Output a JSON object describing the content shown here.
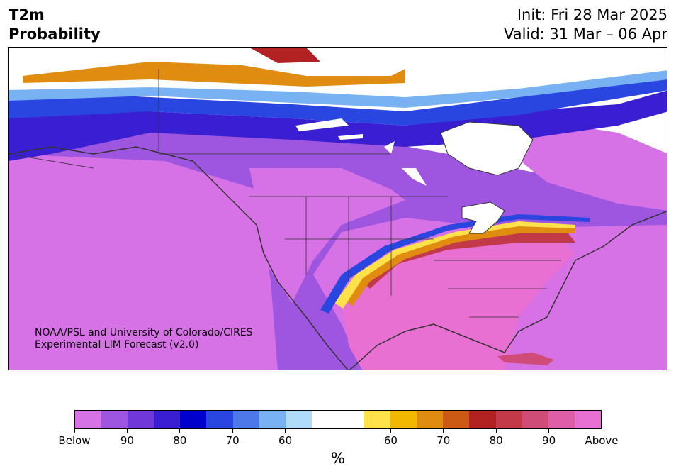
{
  "header": {
    "title_line1": "T2m",
    "title_line2": "Probability",
    "init": "Init: Fri 28 Mar 2025",
    "valid": "Valid: 31 Mar – 06 Apr"
  },
  "credit": {
    "line1": "NOAA/PSL and University of Colorado/CIRES",
    "line2": "Experimental LIM Forecast (v2.0)"
  },
  "colorbar": {
    "unit": "%",
    "colors": [
      "#d672e6",
      "#9e56e0",
      "#7038d8",
      "#3a1fd2",
      "#0000cc",
      "#2a46e0",
      "#4d78ea",
      "#78b2f2",
      "#b0dcfa",
      "#ffffff",
      "#ffffff",
      "#ffe24a",
      "#f2b800",
      "#e08c10",
      "#cc5a14",
      "#b22222",
      "#c23a4a",
      "#d04c78",
      "#de5ea8",
      "#e870d2"
    ],
    "tick_labels": [
      "Below",
      "90",
      "80",
      "70",
      "60",
      "60",
      "70",
      "80",
      "90",
      "Above"
    ]
  },
  "map_colors": {
    "land_outline": "#333333",
    "below_strong": "#d672e6",
    "below_mid": "#9e56e0",
    "above_strong": "#e870d2",
    "neutral": "#ffffff"
  }
}
